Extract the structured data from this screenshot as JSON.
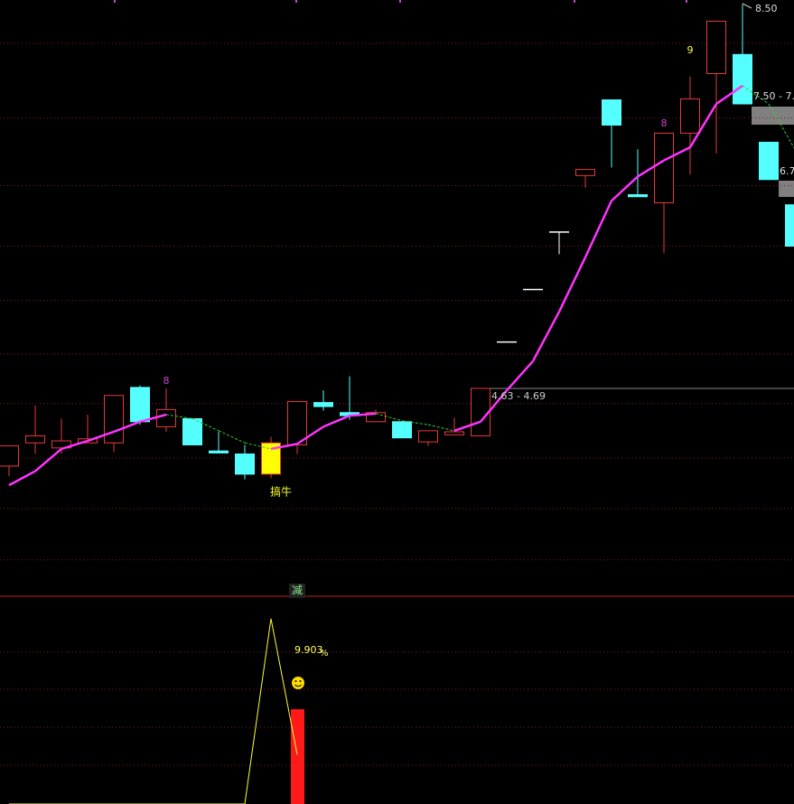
{
  "chart_data": {
    "type": "candlestick",
    "open": [
      3.92,
      4.15,
      4.1,
      4.15,
      4.15,
      4.7,
      4.31,
      4.39,
      4.07,
      4.04,
      3.84,
      4.13,
      4.55,
      4.45,
      4.36,
      4.36,
      4.16,
      4.23,
      4.22,
      5.15,
      5.67,
      6.24,
      6.8,
      7.55,
      6.61,
      6.53,
      7.22,
      7.81,
      8.0,
      7.13,
      6.51
    ],
    "high": [
      4.12,
      4.52,
      4.39,
      4.43,
      4.62,
      4.72,
      4.69,
      4.39,
      4.26,
      4.13,
      4.21,
      4.56,
      4.67,
      4.81,
      4.48,
      4.36,
      4.27,
      4.4,
      4.69,
      5.15,
      5.67,
      6.24,
      6.86,
      7.55,
      7.06,
      7.22,
      7.78,
      8.33,
      8.5,
      7.13,
      6.51
    ],
    "low": [
      3.82,
      4.04,
      4.04,
      4.15,
      4.06,
      4.33,
      4.26,
      4.13,
      4.05,
      3.79,
      3.8,
      4.04,
      4.47,
      4.38,
      4.36,
      4.2,
      4.12,
      4.23,
      4.22,
      5.15,
      5.67,
      6.02,
      6.68,
      6.88,
      6.59,
      6.03,
      6.81,
      7.02,
      7.51,
      6.76,
      6.1
    ],
    "close": [
      4.12,
      4.22,
      4.17,
      4.19,
      4.62,
      4.36,
      4.48,
      4.13,
      4.05,
      3.84,
      4.15,
      4.56,
      4.51,
      4.42,
      4.45,
      4.2,
      4.27,
      4.26,
      4.69,
      5.15,
      5.67,
      6.24,
      6.86,
      7.3,
      6.59,
      7.22,
      7.56,
      8.33,
      7.51,
      6.76,
      6.1
    ],
    "colors": [
      "#000000",
      "#000000",
      "#000000",
      "#000000",
      "#000000",
      "#55ffff",
      "#000000",
      "#55ffff",
      "#55ffff",
      "#55ffff",
      "#ffff00",
      "#000000",
      "#55ffff",
      "#55ffff",
      "#000000",
      "#55ffff",
      "#000000",
      "#000000",
      "#000000",
      "#ffffff",
      "#ffffff",
      "#ffffff",
      "#000000",
      "#55ffff",
      "#55ffff",
      "#000000",
      "#000000",
      "#000000",
      "#55ffff",
      "#55ffff",
      "#55ffff"
    ],
    "up_color": "#e83a3a",
    "down_color": "#55ffff",
    "flat_color": "#ffffff",
    "ma": {
      "values": [
        3.73,
        3.87,
        4.09,
        4.17,
        4.26,
        4.36,
        4.43,
        4.39,
        4.27,
        4.15,
        4.09,
        4.14,
        4.31,
        4.42,
        4.44,
        4.37,
        4.33,
        4.27,
        4.36,
        4.67,
        4.96,
        5.45,
        5.99,
        6.55,
        6.79,
        6.95,
        7.08,
        7.51,
        7.69,
        7.51,
        7.06
      ],
      "rise_color": "#ff33ff",
      "fall_color": "#33cc33"
    },
    "ylim": [
      2.63,
      8.54
    ],
    "yticks": [
      8.11,
      7.37,
      6.7,
      6.1,
      5.56,
      5.03,
      4.54,
      4.0,
      3.5,
      2.99
    ],
    "grid": true,
    "labels": {
      "high_price": "8.50",
      "tag_a": "7.50 - 7.",
      "tag_b": "6.7",
      "range": "4.63 - 4.69",
      "mark_1": "8",
      "mark_2": "8",
      "mark_3": "9",
      "signal": "搞牛"
    },
    "indicator": {
      "ylim": [
        0,
        100
      ],
      "line": [
        0,
        0,
        0,
        0,
        0,
        0,
        0,
        0,
        0,
        0,
        90,
        24,
        null,
        null,
        null,
        null,
        null,
        null,
        null,
        null,
        null,
        null,
        null,
        null,
        null,
        null,
        null,
        null,
        null,
        null,
        null
      ],
      "line_color": "#ffff33",
      "bars": [
        null,
        null,
        null,
        null,
        null,
        null,
        null,
        null,
        null,
        null,
        null,
        46,
        null,
        null,
        null,
        null,
        null,
        null,
        null,
        null,
        null,
        null,
        null,
        null,
        null,
        null,
        null,
        null,
        null,
        null,
        null
      ],
      "bar_color": "#ff1a1a",
      "title": "减",
      "value_text": "9.903",
      "unit_text": "%"
    }
  }
}
